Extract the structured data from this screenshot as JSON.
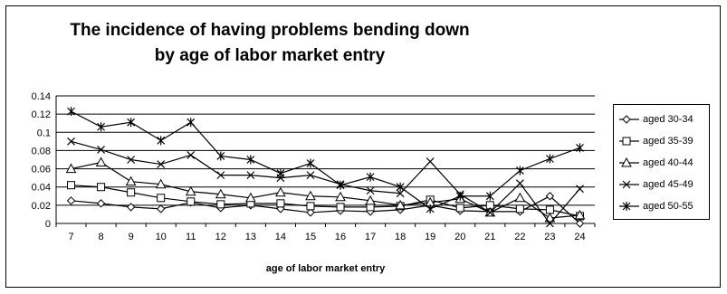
{
  "chart_data": {
    "type": "line",
    "title_line1": "The incidence of having problems bending down",
    "title_line2": "by age of labor market entry",
    "xlabel": "age of labor market entry",
    "ylabel": "",
    "x": [
      7,
      8,
      9,
      10,
      11,
      12,
      13,
      14,
      15,
      16,
      17,
      18,
      19,
      20,
      21,
      22,
      23,
      24
    ],
    "ylim": [
      0,
      0.14
    ],
    "yticks": [
      "0",
      "0.02",
      "0.04",
      "0.06",
      "0.08",
      "0.1",
      "0.12",
      "0.14"
    ],
    "grid": "horizontal",
    "legend_position": "right",
    "series": [
      {
        "name": "aged 30-34",
        "marker": "diamond",
        "values": [
          0.025,
          0.022,
          0.018,
          0.016,
          0.023,
          0.017,
          0.02,
          0.016,
          0.012,
          0.014,
          0.013,
          0.015,
          0.02,
          0.014,
          0.013,
          0.013,
          0.03,
          0.0
        ]
      },
      {
        "name": "aged 35-39",
        "marker": "square",
        "values": [
          0.042,
          0.04,
          0.034,
          0.028,
          0.024,
          0.021,
          0.022,
          0.022,
          0.019,
          0.018,
          0.018,
          0.019,
          0.026,
          0.017,
          0.02,
          0.016,
          0.015,
          0.008
        ]
      },
      {
        "name": "aged 40-44",
        "marker": "triangle",
        "values": [
          0.06,
          0.067,
          0.046,
          0.043,
          0.035,
          0.032,
          0.028,
          0.034,
          0.03,
          0.029,
          0.025,
          0.02,
          0.023,
          0.027,
          0.012,
          0.028,
          0.006,
          0.009
        ]
      },
      {
        "name": "aged 45-49",
        "marker": "x",
        "values": [
          0.09,
          0.081,
          0.07,
          0.065,
          0.075,
          0.053,
          0.053,
          0.05,
          0.053,
          0.043,
          0.036,
          0.033,
          0.068,
          0.032,
          0.012,
          0.044,
          0.0,
          0.038
        ]
      },
      {
        "name": "aged 50-55",
        "marker": "star",
        "values": [
          0.123,
          0.106,
          0.111,
          0.091,
          0.111,
          0.074,
          0.07,
          0.055,
          0.066,
          0.042,
          0.051,
          0.04,
          0.016,
          0.03,
          0.03,
          0.058,
          0.071,
          0.083
        ]
      }
    ]
  }
}
